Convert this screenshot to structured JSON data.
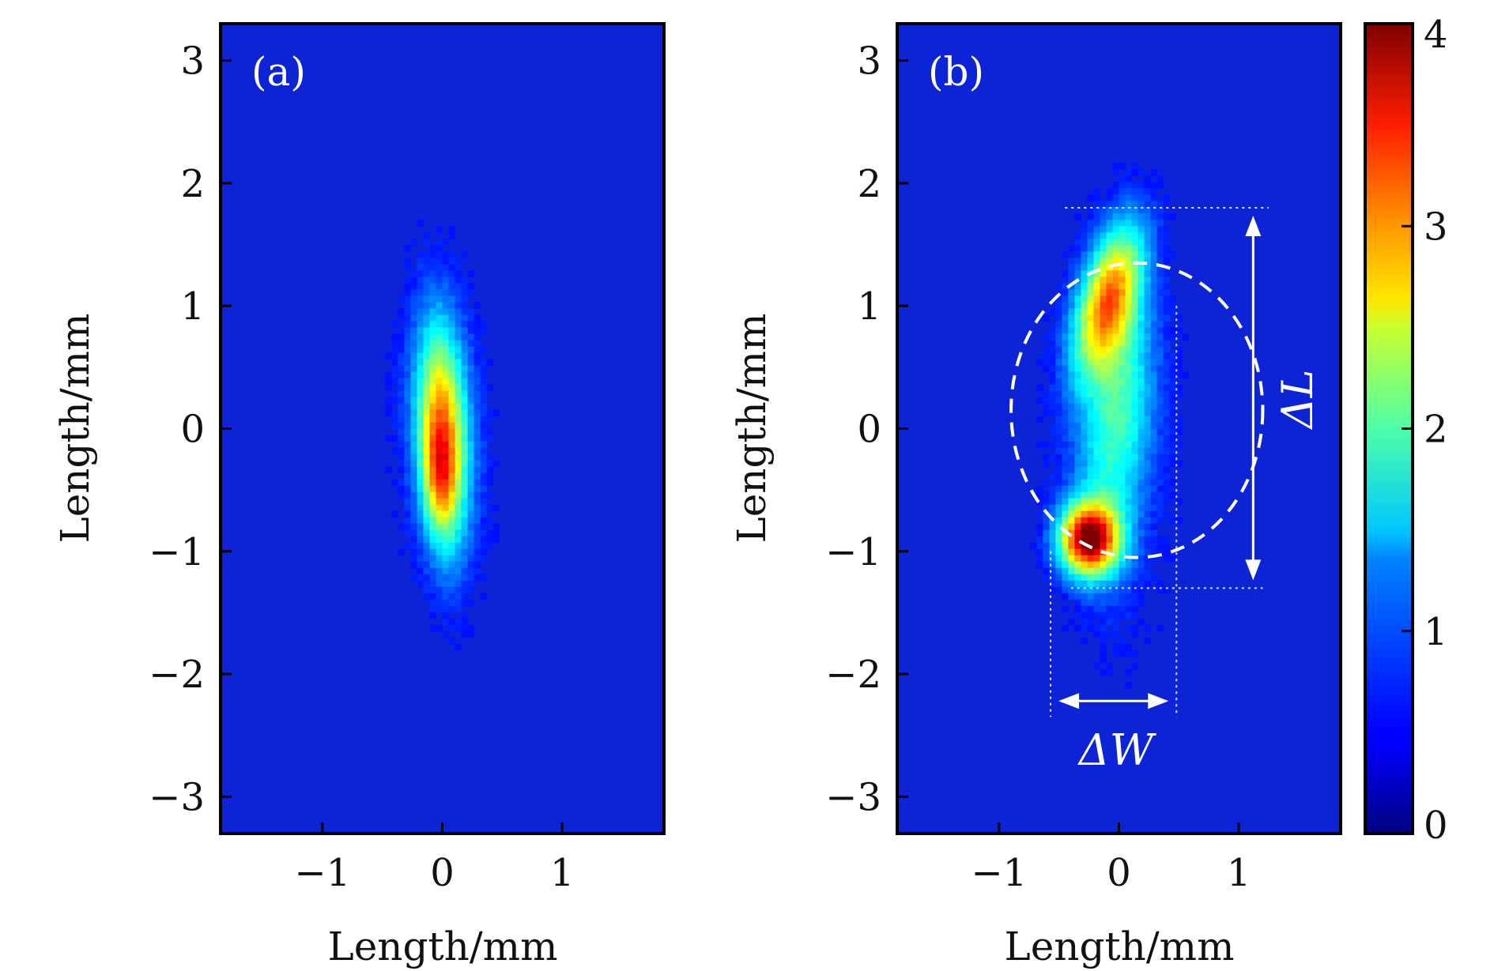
{
  "chart_data": [
    {
      "type": "heatmap",
      "panel_label": "(a)",
      "xlabel": "Length/mm",
      "ylabel": "Length/mm",
      "xlim": [
        -1.85,
        1.85
      ],
      "ylim": [
        -3.3,
        3.3
      ],
      "x_ticks": [
        -1,
        0,
        1
      ],
      "x_tick_labels": [
        "−1",
        "0",
        "1"
      ],
      "y_ticks": [
        3,
        2,
        1,
        0,
        -1,
        -2,
        -3
      ],
      "y_tick_labels": [
        "3",
        "2",
        "1",
        "0",
        "−1",
        "−2",
        "−3"
      ],
      "intensity_features": [
        {
          "shape": "elongated spot",
          "center_x": 0.0,
          "center_y": 0.0,
          "peak_value": 3.3,
          "peak_at": [
            -0.05,
            -0.4
          ],
          "width_mm": 0.55,
          "length_mm": 2.6,
          "tilt": "slight"
        }
      ]
    },
    {
      "type": "heatmap",
      "panel_label": "(b)",
      "xlabel": "Length/mm",
      "ylabel": "Length/mm",
      "xlim": [
        -1.85,
        1.85
      ],
      "ylim": [
        -3.3,
        3.3
      ],
      "x_ticks": [
        -1,
        0,
        1
      ],
      "x_tick_labels": [
        "−1",
        "0",
        "1"
      ],
      "y_ticks": [
        3,
        2,
        1,
        0,
        -1,
        -2,
        -3
      ],
      "y_tick_labels": [
        "3",
        "2",
        "1",
        "0",
        "−1",
        "−2",
        "−3"
      ],
      "intensity_features": [
        {
          "shape": "lower spot",
          "center_x": -0.25,
          "center_y": -0.9,
          "peak_value": 4.0
        },
        {
          "shape": "upper spot",
          "center_x": -0.1,
          "center_y": 1.15,
          "peak_value": 2.9
        },
        {
          "shape": "connecting bridge",
          "center_x": -0.05,
          "center_y": 0.1,
          "peak_value": 1.4
        }
      ],
      "annotations": [
        {
          "text": "ΔL",
          "meaning": "vertical extent",
          "y_from": -1.3,
          "y_to": 1.8
        },
        {
          "text": "ΔW",
          "meaning": "horizontal extent",
          "x_from": -0.57,
          "x_to": 0.48
        },
        {
          "shape": "dashed circle",
          "center": [
            0.15,
            0.15
          ],
          "radius_mm": 1.0
        }
      ]
    }
  ],
  "colorbar": {
    "colormap": "jet",
    "min": 0,
    "max": 4,
    "ticks": [
      0,
      1,
      2,
      3,
      4
    ],
    "tick_labels": [
      "0",
      "1",
      "2",
      "3",
      "4"
    ]
  }
}
